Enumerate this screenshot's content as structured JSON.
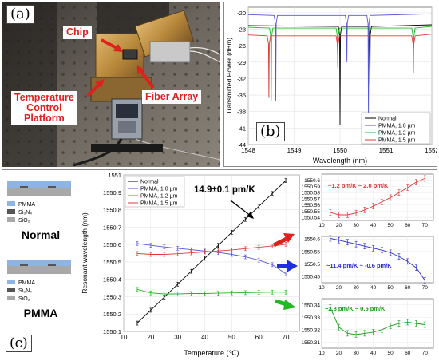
{
  "panel_a": {
    "label": "(a)",
    "chip_label": "Chip",
    "fiber_label": "Fiber Array",
    "platform_label_lines": [
      "Temperature",
      "Control",
      "Platform"
    ]
  },
  "panel_b": {
    "label": "(b)",
    "ylabel": "Transmitted Power (dBm)",
    "xlabel": "Wavelength (nm)",
    "xticks": [
      "1548",
      "1549",
      "1550",
      "1551",
      "1552"
    ],
    "yticks": [
      "-20",
      "-23",
      "-26",
      "-29",
      "-32",
      "-35",
      "-38",
      "-41",
      "-44"
    ],
    "legend": [
      "Normal",
      "PMMA, 1.0 µm",
      "PMMA, 1.2 µm",
      "PMMA, 1.5 µm"
    ],
    "colors": [
      "#000000",
      "#5555d8",
      "#22b822",
      "#e03838"
    ]
  },
  "panel_c": {
    "label": "(c)",
    "legend_pmma": "PMMA",
    "legend_si3n4": "Si₃N₄",
    "legend_sio2": "SiO₂",
    "title_normal": "Normal",
    "title_pmma": "PMMA",
    "colors": {
      "pmma": "#8db4e2",
      "si3n4": "#555555",
      "sio2": "#a8a8a8"
    }
  },
  "chart_data": [
    {
      "type": "line",
      "panel": "b",
      "x_range": [
        1548,
        1552
      ],
      "ylim": [
        -44,
        -19
      ],
      "xlabel": "Wavelength (nm)",
      "ylabel": "Transmitted Power (dBm)",
      "legend_placement": "bottom-right",
      "series": [
        {
          "name": "Normal",
          "baseline": -22.5,
          "dips": [
            {
              "x": 1550.0,
              "depth": -40.5
            },
            {
              "x": 1550.65,
              "depth": -33.5
            }
          ]
        },
        {
          "name": "PMMA, 1.0 µm",
          "baseline": -20.5,
          "dips": [
            {
              "x": 1548.6,
              "depth": -36
            },
            {
              "x": 1550.15,
              "depth": -29
            },
            {
              "x": 1550.62,
              "depth": -39.5
            }
          ]
        },
        {
          "name": "PMMA, 1.2 µm",
          "baseline": -22.8,
          "dips": [
            {
              "x": 1548.5,
              "depth": -36
            },
            {
              "x": 1549.95,
              "depth": -30
            },
            {
              "x": 1551.6,
              "depth": -31
            }
          ]
        },
        {
          "name": "PMMA, 1.5 µm",
          "baseline": -24.2,
          "dips": [
            {
              "x": 1548.45,
              "depth": -35.5
            },
            {
              "x": 1549.95,
              "depth": -27.5
            },
            {
              "x": 1551.6,
              "depth": -26.5
            }
          ]
        }
      ]
    },
    {
      "type": "line",
      "panel": "c-main",
      "xlabel": "Temperature (℃)",
      "ylabel": "Resonant wavelength (nm)",
      "xlim": [
        10,
        75
      ],
      "ylim": [
        1550.1,
        1551.0
      ],
      "xticks": [
        "10",
        "20",
        "30",
        "40",
        "50",
        "60",
        "70"
      ],
      "yticks": [
        "1550.1",
        "1550.2",
        "1550.3",
        "1550.4",
        "1550.5",
        "1550.6",
        "1550.7",
        "1550.8",
        "1550.9",
        "1551"
      ],
      "annotation": "14.9±0.1 pm/K",
      "legend_placement": "top-left",
      "x": [
        15,
        20,
        25,
        30,
        35,
        40,
        45,
        50,
        55,
        60,
        65,
        70
      ],
      "series": [
        {
          "name": "Normal",
          "values": [
            1550.148,
            1550.222,
            1550.297,
            1550.372,
            1550.446,
            1550.521,
            1550.595,
            1550.67,
            1550.744,
            1550.819,
            1550.893,
            1550.968
          ]
        },
        {
          "name": "PMMA, 1.0 µm",
          "values": [
            1550.606,
            1550.595,
            1550.586,
            1550.578,
            1550.57,
            1550.562,
            1550.554,
            1550.543,
            1550.529,
            1550.51,
            1550.484,
            1550.432
          ]
        },
        {
          "name": "PMMA, 1.2 µm",
          "values": [
            1550.342,
            1550.322,
            1550.316,
            1550.316,
            1550.318,
            1550.318,
            1550.32,
            1550.322,
            1550.323,
            1550.325,
            1550.326,
            1550.326
          ]
        },
        {
          "name": "PMMA, 1.5 µm",
          "values": [
            1550.548,
            1550.543,
            1550.543,
            1550.547,
            1550.552,
            1550.557,
            1550.563,
            1550.569,
            1550.576,
            1550.584,
            1550.592,
            1550.601
          ]
        }
      ]
    },
    {
      "type": "line",
      "panel": "c-inset-1",
      "annotation": "~1.2 pm/K ~ 2.0 pm/K",
      "xlim": [
        10,
        75
      ],
      "ylim": [
        1550.535,
        1550.61
      ],
      "xticks": [
        "10",
        "20",
        "30",
        "40",
        "50",
        "60",
        "70"
      ],
      "yticks": [
        "1550.54",
        "1550.55",
        "1550.56",
        "1550.57",
        "1550.58",
        "1550.59",
        "1550.6"
      ],
      "x": [
        15,
        20,
        25,
        30,
        35,
        40,
        45,
        50,
        55,
        60,
        65,
        70
      ],
      "values": [
        1550.548,
        1550.544,
        1550.544,
        1550.547,
        1550.552,
        1550.558,
        1550.565,
        1550.572,
        1550.58,
        1550.588,
        1550.597,
        1550.603
      ]
    },
    {
      "type": "line",
      "panel": "c-inset-2",
      "annotation": "~11.4 pm/K ~ -0.6 pm/K",
      "xlim": [
        10,
        75
      ],
      "ylim": [
        1550.425,
        1550.61
      ],
      "xticks": [
        "10",
        "20",
        "30",
        "40",
        "50",
        "60",
        "70"
      ],
      "yticks": [
        "1550.45",
        "1550.5",
        "1550.55",
        "1550.6"
      ],
      "x": [
        15,
        20,
        25,
        30,
        35,
        40,
        45,
        50,
        55,
        60,
        65,
        70
      ],
      "values": [
        1550.602,
        1550.595,
        1550.587,
        1550.579,
        1550.571,
        1550.563,
        1550.555,
        1550.545,
        1550.53,
        1550.51,
        1550.485,
        1550.435
      ]
    },
    {
      "type": "line",
      "panel": "c-inset-3",
      "annotation": "~2.8 pm/K ~ 0.5 pm/K",
      "xlim": [
        10,
        75
      ],
      "ylim": [
        1550.305,
        1550.345
      ],
      "xticks": [
        "10",
        "20",
        "30",
        "40",
        "50",
        "60",
        "70"
      ],
      "yticks": [
        "1550.31",
        "1550.32",
        "1550.33",
        "1550.34"
      ],
      "x": [
        15,
        20,
        25,
        30,
        35,
        40,
        45,
        50,
        55,
        60,
        65,
        70
      ],
      "values": [
        1550.338,
        1550.322,
        1550.317,
        1550.316,
        1550.317,
        1550.318,
        1550.32,
        1550.323,
        1550.325,
        1550.326,
        1550.325,
        1550.324
      ]
    }
  ]
}
